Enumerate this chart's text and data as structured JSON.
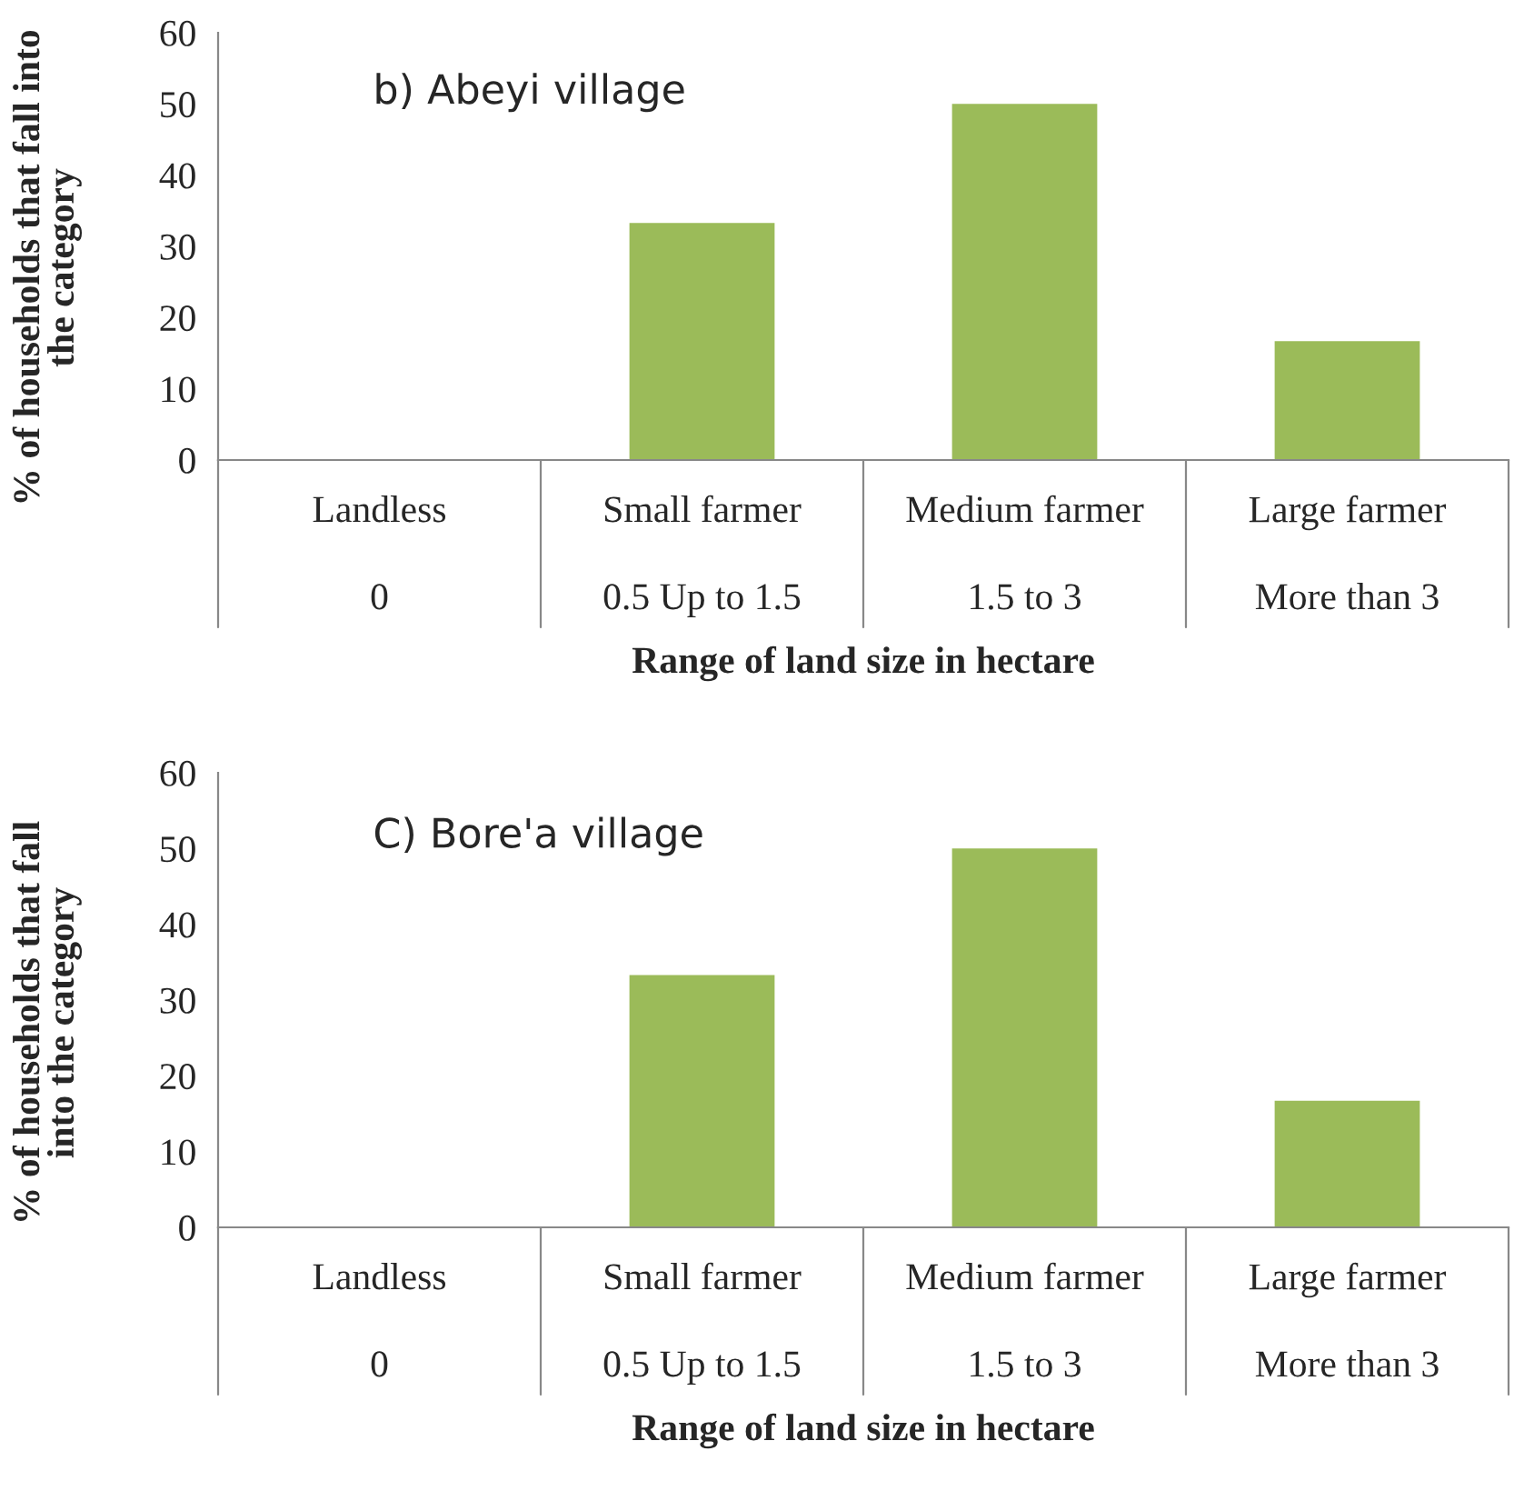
{
  "chart_data": [
    {
      "type": "bar",
      "title": "b) Abeyi village",
      "xlabel": "Range of land size in hectare",
      "ylabel": "% of households that fall into\nthe category",
      "categories": [
        "Landless\n0",
        "Small farmer\n0.5 Up to 1.5",
        "Medium farmer\n1.5 to 3",
        "Large farmer\nMore than 3"
      ],
      "values": [
        0,
        33.3,
        50,
        16.7
      ],
      "color": "#9bbb59",
      "ylim": [
        0,
        60
      ],
      "yticks": [
        0,
        10,
        20,
        30,
        40,
        50,
        60
      ],
      "grid": false,
      "legend": false
    },
    {
      "type": "bar",
      "title": "C) Bore'a village",
      "xlabel": "Range of land size in hectare",
      "ylabel": "% of households that fall\ninto the category",
      "categories": [
        "Landless\n0",
        "Small farmer\n0.5 Up to 1.5",
        "Medium farmer\n1.5 to 3",
        "Large farmer\nMore than 3"
      ],
      "values": [
        0,
        33.3,
        50,
        16.7
      ],
      "color": "#9bbb59",
      "ylim": [
        0,
        60
      ],
      "yticks": [
        0,
        10,
        20,
        30,
        40,
        50,
        60
      ],
      "grid": false,
      "legend": false
    }
  ]
}
